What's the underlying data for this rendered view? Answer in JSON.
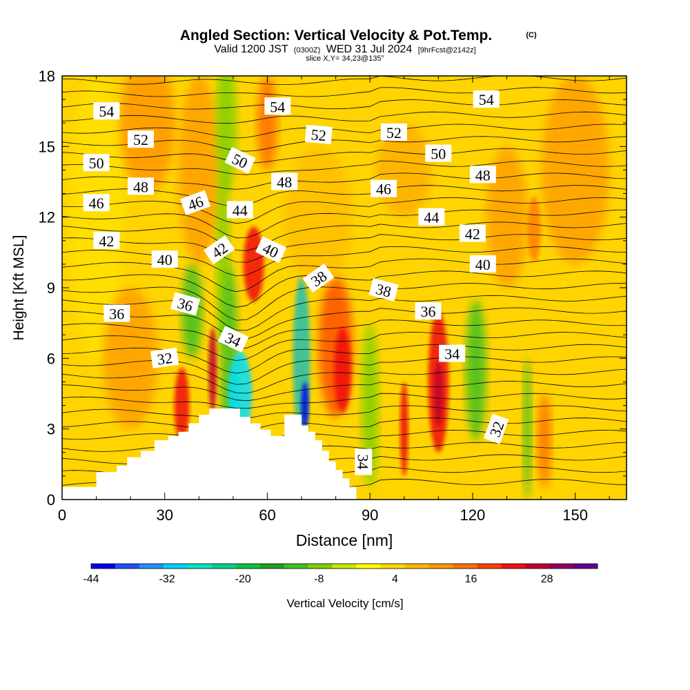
{
  "chart_data": {
    "type": "heatmap",
    "title": "Angled Section: Vertical Velocity & Pot.Temp.",
    "title_mark": "(C)",
    "subtitle_parts": [
      "Valid 1200 JST",
      "(0300Z)",
      "WED 31 Jul 2024",
      "[9hrFcst@2142z]"
    ],
    "slice_text": "slice X,Y= 34,23@135°",
    "xlabel": "Distance [nm]",
    "ylabel": "Height [Kft MSL]",
    "xlim": [
      0,
      165
    ],
    "ylim": [
      0,
      18
    ],
    "x_ticks": [
      0,
      30,
      60,
      90,
      120,
      150
    ],
    "y_ticks": [
      0,
      3,
      6,
      9,
      12,
      15,
      18
    ],
    "colorbar": {
      "label": "Vertical Velocity [cm/s]",
      "tick_labels": [
        "-44",
        "-32",
        "-20",
        "-8",
        "4",
        "16",
        "28"
      ],
      "tick_values": [
        -44,
        -32,
        -20,
        -8,
        4,
        16,
        28
      ],
      "vmin": -44,
      "vmax": 36,
      "step": 4,
      "colors": [
        "#0000ee",
        "#1f4fff",
        "#1e90ff",
        "#00d0ff",
        "#00e5c5",
        "#00d08a",
        "#10c040",
        "#20a020",
        "#40c020",
        "#80d000",
        "#c8e800",
        "#ffff00",
        "#ffd800",
        "#ffb800",
        "#ff9800",
        "#ff7000",
        "#ff4000",
        "#f01010",
        "#c00030",
        "#900060",
        "#600090"
      ]
    },
    "contour_labels": [
      {
        "text": "54",
        "x": 13,
        "y": 16.5,
        "angle": 0
      },
      {
        "text": "52",
        "x": 23,
        "y": 15.3,
        "angle": 0
      },
      {
        "text": "50",
        "x": 10,
        "y": 14.3,
        "angle": 0
      },
      {
        "text": "48",
        "x": 23,
        "y": 13.3,
        "angle": 0
      },
      {
        "text": "46",
        "x": 10,
        "y": 12.6,
        "angle": 0
      },
      {
        "text": "42",
        "x": 13,
        "y": 11.0,
        "angle": 0
      },
      {
        "text": "40",
        "x": 30,
        "y": 10.2,
        "angle": 0
      },
      {
        "text": "36",
        "x": 16,
        "y": 7.9,
        "angle": 0
      },
      {
        "text": "36",
        "x": 36,
        "y": 8.3,
        "angle": 15
      },
      {
        "text": "32",
        "x": 30,
        "y": 6.0,
        "angle": -8
      },
      {
        "text": "46",
        "x": 39,
        "y": 12.6,
        "angle": -20
      },
      {
        "text": "44",
        "x": 52,
        "y": 12.3,
        "angle": 0
      },
      {
        "text": "42",
        "x": 46,
        "y": 10.6,
        "angle": -35
      },
      {
        "text": "50",
        "x": 52,
        "y": 14.4,
        "angle": 25
      },
      {
        "text": "54",
        "x": 63,
        "y": 16.7,
        "angle": 0
      },
      {
        "text": "48",
        "x": 65,
        "y": 13.5,
        "angle": 0
      },
      {
        "text": "52",
        "x": 75,
        "y": 15.5,
        "angle": 5
      },
      {
        "text": "40",
        "x": 61,
        "y": 10.6,
        "angle": 25
      },
      {
        "text": "34",
        "x": 50,
        "y": 6.8,
        "angle": 25
      },
      {
        "text": "38",
        "x": 75,
        "y": 9.4,
        "angle": -35
      },
      {
        "text": "46",
        "x": 94,
        "y": 13.2,
        "angle": 0
      },
      {
        "text": "52",
        "x": 97,
        "y": 15.6,
        "angle": 0
      },
      {
        "text": "38",
        "x": 94,
        "y": 8.9,
        "angle": 15
      },
      {
        "text": "50",
        "x": 110,
        "y": 14.7,
        "angle": 0
      },
      {
        "text": "48",
        "x": 123,
        "y": 13.8,
        "angle": 0
      },
      {
        "text": "54",
        "x": 124,
        "y": 17.0,
        "angle": 0
      },
      {
        "text": "44",
        "x": 108,
        "y": 12.0,
        "angle": 0
      },
      {
        "text": "42",
        "x": 120,
        "y": 11.3,
        "angle": 0
      },
      {
        "text": "40",
        "x": 123,
        "y": 10.0,
        "angle": 0
      },
      {
        "text": "36",
        "x": 107,
        "y": 8.0,
        "angle": 0
      },
      {
        "text": "34",
        "x": 114,
        "y": 6.2,
        "angle": 0
      },
      {
        "text": "32",
        "x": 127,
        "y": 3.0,
        "angle": -70
      },
      {
        "text": "34",
        "x": 88,
        "y": 1.6,
        "angle": 90
      }
    ]
  }
}
